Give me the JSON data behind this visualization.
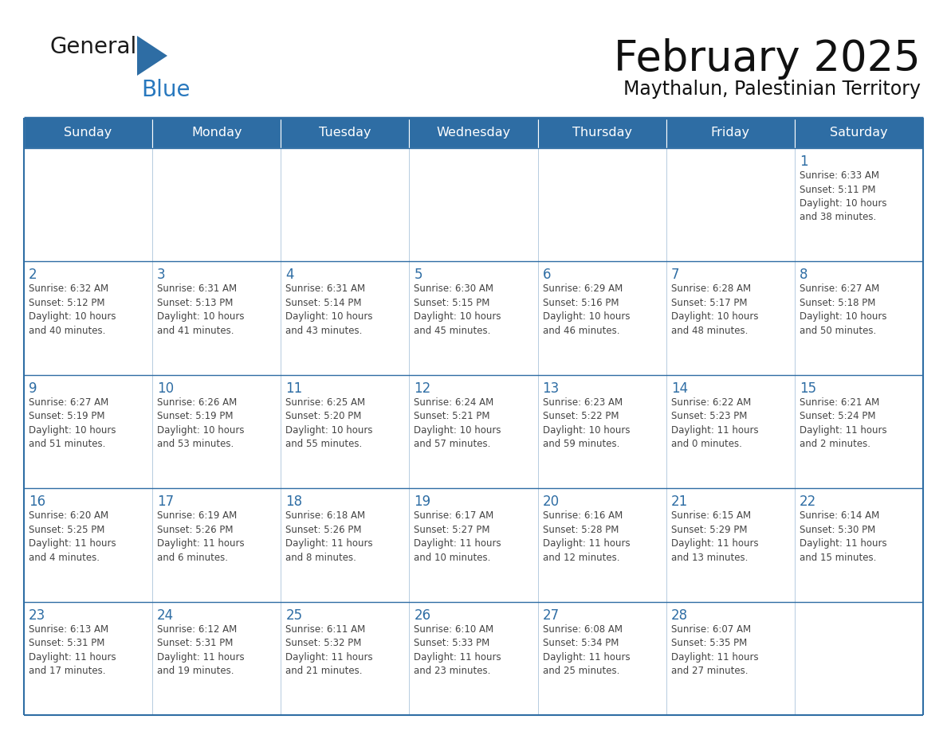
{
  "title": "February 2025",
  "subtitle": "Maythalun, Palestinian Territory",
  "header_bg_color": "#2E6DA4",
  "header_text_color": "#FFFFFF",
  "cell_bg_color": "#FFFFFF",
  "cell_alt_bg_color": "#F2F2F2",
  "cell_border_color": "#2E6DA4",
  "day_number_color": "#2E6DA4",
  "info_text_color": "#444444",
  "logo_text_color": "#1a1a1a",
  "logo_blue_color": "#2878BE",
  "days_of_week": [
    "Sunday",
    "Monday",
    "Tuesday",
    "Wednesday",
    "Thursday",
    "Friday",
    "Saturday"
  ],
  "weeks": [
    [
      {
        "day": 0,
        "info": ""
      },
      {
        "day": 0,
        "info": ""
      },
      {
        "day": 0,
        "info": ""
      },
      {
        "day": 0,
        "info": ""
      },
      {
        "day": 0,
        "info": ""
      },
      {
        "day": 0,
        "info": ""
      },
      {
        "day": 1,
        "info": "Sunrise: 6:33 AM\nSunset: 5:11 PM\nDaylight: 10 hours\nand 38 minutes."
      }
    ],
    [
      {
        "day": 2,
        "info": "Sunrise: 6:32 AM\nSunset: 5:12 PM\nDaylight: 10 hours\nand 40 minutes."
      },
      {
        "day": 3,
        "info": "Sunrise: 6:31 AM\nSunset: 5:13 PM\nDaylight: 10 hours\nand 41 minutes."
      },
      {
        "day": 4,
        "info": "Sunrise: 6:31 AM\nSunset: 5:14 PM\nDaylight: 10 hours\nand 43 minutes."
      },
      {
        "day": 5,
        "info": "Sunrise: 6:30 AM\nSunset: 5:15 PM\nDaylight: 10 hours\nand 45 minutes."
      },
      {
        "day": 6,
        "info": "Sunrise: 6:29 AM\nSunset: 5:16 PM\nDaylight: 10 hours\nand 46 minutes."
      },
      {
        "day": 7,
        "info": "Sunrise: 6:28 AM\nSunset: 5:17 PM\nDaylight: 10 hours\nand 48 minutes."
      },
      {
        "day": 8,
        "info": "Sunrise: 6:27 AM\nSunset: 5:18 PM\nDaylight: 10 hours\nand 50 minutes."
      }
    ],
    [
      {
        "day": 9,
        "info": "Sunrise: 6:27 AM\nSunset: 5:19 PM\nDaylight: 10 hours\nand 51 minutes."
      },
      {
        "day": 10,
        "info": "Sunrise: 6:26 AM\nSunset: 5:19 PM\nDaylight: 10 hours\nand 53 minutes."
      },
      {
        "day": 11,
        "info": "Sunrise: 6:25 AM\nSunset: 5:20 PM\nDaylight: 10 hours\nand 55 minutes."
      },
      {
        "day": 12,
        "info": "Sunrise: 6:24 AM\nSunset: 5:21 PM\nDaylight: 10 hours\nand 57 minutes."
      },
      {
        "day": 13,
        "info": "Sunrise: 6:23 AM\nSunset: 5:22 PM\nDaylight: 10 hours\nand 59 minutes."
      },
      {
        "day": 14,
        "info": "Sunrise: 6:22 AM\nSunset: 5:23 PM\nDaylight: 11 hours\nand 0 minutes."
      },
      {
        "day": 15,
        "info": "Sunrise: 6:21 AM\nSunset: 5:24 PM\nDaylight: 11 hours\nand 2 minutes."
      }
    ],
    [
      {
        "day": 16,
        "info": "Sunrise: 6:20 AM\nSunset: 5:25 PM\nDaylight: 11 hours\nand 4 minutes."
      },
      {
        "day": 17,
        "info": "Sunrise: 6:19 AM\nSunset: 5:26 PM\nDaylight: 11 hours\nand 6 minutes."
      },
      {
        "day": 18,
        "info": "Sunrise: 6:18 AM\nSunset: 5:26 PM\nDaylight: 11 hours\nand 8 minutes."
      },
      {
        "day": 19,
        "info": "Sunrise: 6:17 AM\nSunset: 5:27 PM\nDaylight: 11 hours\nand 10 minutes."
      },
      {
        "day": 20,
        "info": "Sunrise: 6:16 AM\nSunset: 5:28 PM\nDaylight: 11 hours\nand 12 minutes."
      },
      {
        "day": 21,
        "info": "Sunrise: 6:15 AM\nSunset: 5:29 PM\nDaylight: 11 hours\nand 13 minutes."
      },
      {
        "day": 22,
        "info": "Sunrise: 6:14 AM\nSunset: 5:30 PM\nDaylight: 11 hours\nand 15 minutes."
      }
    ],
    [
      {
        "day": 23,
        "info": "Sunrise: 6:13 AM\nSunset: 5:31 PM\nDaylight: 11 hours\nand 17 minutes."
      },
      {
        "day": 24,
        "info": "Sunrise: 6:12 AM\nSunset: 5:31 PM\nDaylight: 11 hours\nand 19 minutes."
      },
      {
        "day": 25,
        "info": "Sunrise: 6:11 AM\nSunset: 5:32 PM\nDaylight: 11 hours\nand 21 minutes."
      },
      {
        "day": 26,
        "info": "Sunrise: 6:10 AM\nSunset: 5:33 PM\nDaylight: 11 hours\nand 23 minutes."
      },
      {
        "day": 27,
        "info": "Sunrise: 6:08 AM\nSunset: 5:34 PM\nDaylight: 11 hours\nand 25 minutes."
      },
      {
        "day": 28,
        "info": "Sunrise: 6:07 AM\nSunset: 5:35 PM\nDaylight: 11 hours\nand 27 minutes."
      },
      {
        "day": 0,
        "info": ""
      }
    ]
  ],
  "figsize": [
    11.88,
    9.18
  ],
  "dpi": 100
}
